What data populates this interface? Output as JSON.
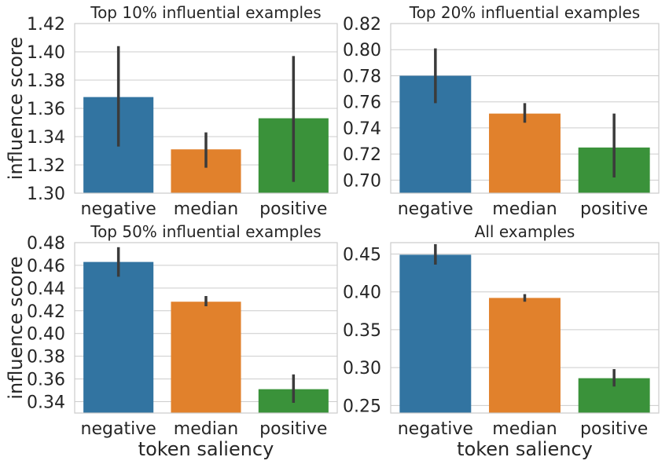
{
  "colors": {
    "negative": "#3274a1",
    "median": "#e1812c",
    "positive": "#3a923a"
  },
  "chart_data": [
    {
      "type": "bar",
      "title": "Top 10% influential examples",
      "xlabel": "",
      "ylabel": "influence score",
      "categories": [
        "negative",
        "median",
        "positive"
      ],
      "values": [
        1.368,
        1.331,
        1.353
      ],
      "error_low": [
        1.333,
        1.318,
        1.308
      ],
      "error_high": [
        1.404,
        1.343,
        1.397
      ],
      "ylim": [
        1.3,
        1.42
      ],
      "yticks": [
        1.3,
        1.32,
        1.34,
        1.36,
        1.38,
        1.4,
        1.42
      ],
      "ytick_labels": [
        "1.30",
        "1.32",
        "1.34",
        "1.36",
        "1.38",
        "1.40",
        "1.42"
      ]
    },
    {
      "type": "bar",
      "title": "Top 20% influential examples",
      "xlabel": "",
      "ylabel": "",
      "categories": [
        "negative",
        "median",
        "positive"
      ],
      "values": [
        0.78,
        0.751,
        0.725
      ],
      "error_low": [
        0.759,
        0.744,
        0.702
      ],
      "error_high": [
        0.801,
        0.759,
        0.751
      ],
      "ylim": [
        0.69,
        0.82
      ],
      "yticks": [
        0.7,
        0.72,
        0.74,
        0.76,
        0.78,
        0.8,
        0.82
      ],
      "ytick_labels": [
        "0.70",
        "0.72",
        "0.74",
        "0.76",
        "0.78",
        "0.80",
        "0.82"
      ]
    },
    {
      "type": "bar",
      "title": "Top 50% influential examples",
      "xlabel": "token saliency",
      "ylabel": "influence score",
      "categories": [
        "negative",
        "median",
        "positive"
      ],
      "values": [
        0.463,
        0.428,
        0.351
      ],
      "error_low": [
        0.45,
        0.424,
        0.339
      ],
      "error_high": [
        0.476,
        0.433,
        0.364
      ],
      "ylim": [
        0.33,
        0.48
      ],
      "yticks": [
        0.34,
        0.36,
        0.38,
        0.4,
        0.42,
        0.44,
        0.46,
        0.48
      ],
      "ytick_labels": [
        "0.34",
        "0.36",
        "0.38",
        "0.40",
        "0.42",
        "0.44",
        "0.46",
        "0.48"
      ]
    },
    {
      "type": "bar",
      "title": "All examples",
      "xlabel": "token saliency",
      "ylabel": "",
      "categories": [
        "negative",
        "median",
        "positive"
      ],
      "values": [
        0.449,
        0.392,
        0.286
      ],
      "error_low": [
        0.436,
        0.387,
        0.275
      ],
      "error_high": [
        0.463,
        0.397,
        0.298
      ],
      "ylim": [
        0.24,
        0.465
      ],
      "yticks": [
        0.25,
        0.3,
        0.35,
        0.4,
        0.45
      ],
      "ytick_labels": [
        "0.25",
        "0.30",
        "0.35",
        "0.40",
        "0.45"
      ]
    }
  ]
}
